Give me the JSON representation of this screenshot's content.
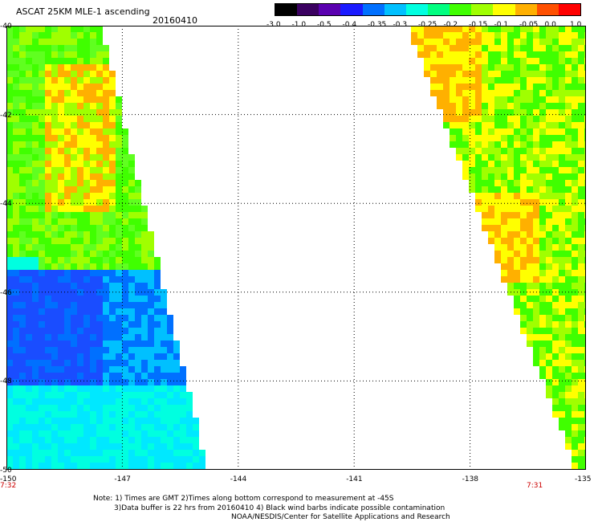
{
  "header": {
    "title": "ASCAT 25KM MLE-1 ascending",
    "date": "20160410"
  },
  "colorbar": {
    "labels": [
      "-3.0",
      "-1.0",
      "-0.5",
      "-0.4",
      "-0.35",
      "-0.3",
      "-0.25",
      "-0.2",
      "-0.15",
      "-0.1",
      "-0.05",
      "0.0",
      "1.0"
    ],
    "colors": [
      "#000000",
      "#3a0060",
      "#5a00b0",
      "#1a1aff",
      "#0070ff",
      "#00c0ff",
      "#00ffe0",
      "#00ff80",
      "#40ff00",
      "#a0ff00",
      "#ffff00",
      "#ffb000",
      "#ff5000",
      "#ff0000"
    ]
  },
  "axes": {
    "y_labels": [
      "-40",
      "-42",
      "-44",
      "-46",
      "-48",
      "-50"
    ],
    "x_labels": [
      "-150",
      "-147",
      "-144",
      "-141",
      "-138",
      "-135"
    ],
    "x_range": [
      -150,
      -135
    ],
    "y_range": [
      -50,
      -40
    ]
  },
  "times": {
    "left": "7:32",
    "right": "7:31"
  },
  "notes": {
    "line1": "Note: 1) Times are GMT 2)Times along bottom correspond to measurement at -45S",
    "line2": "3)Data buffer is 22 hrs from 20160410 4) Black wind barbs indicate possible contamination",
    "line3": "NOAA/NESDIS/Center for Satellite Applications and Research"
  }
}
